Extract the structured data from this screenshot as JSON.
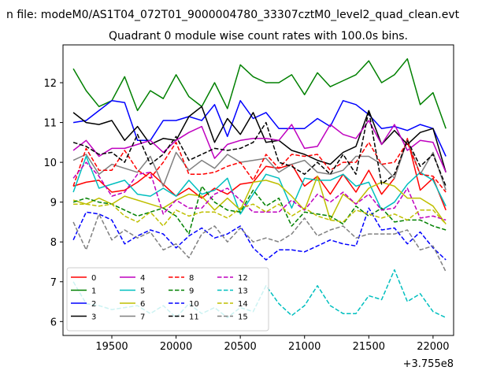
{
  "figure": {
    "suptitle": "n file: modeM0/AS1T04_072T01_9000004780_33307cztM0_level2_quad_clean.evt",
    "offset_text": "+3.755e8"
  },
  "chart_data": {
    "type": "line",
    "title": "Quadrant 0 module wise count rates with 100.0s bins.",
    "xlabel": "",
    "ylabel": "",
    "xlim": [
      19120,
      22160
    ],
    "ylim": [
      5.65,
      12.95
    ],
    "x_ticks": [
      19500,
      20000,
      20500,
      21000,
      21500,
      22000
    ],
    "x_tick_labels": [
      "19500",
      "20000",
      "20500",
      "21000",
      "21500",
      "22000"
    ],
    "y_ticks": [
      6,
      7,
      8,
      9,
      10,
      11,
      12
    ],
    "y_tick_labels": [
      "6",
      "7",
      "8",
      "9",
      "10",
      "11",
      "12"
    ],
    "grid": false,
    "legend_position": "lower-left",
    "legend_columns": 4,
    "x": [
      19200,
      19300,
      19400,
      19500,
      19600,
      19700,
      19800,
      19900,
      20000,
      20100,
      20200,
      20300,
      20400,
      20500,
      20600,
      20700,
      20800,
      20900,
      21000,
      21100,
      21200,
      21300,
      21400,
      21500,
      21600,
      21700,
      21800,
      21900,
      22000,
      22100
    ],
    "series": [
      {
        "name": "0",
        "color": "#ff0000",
        "dash": "solid",
        "values": [
          9.4,
          9.5,
          9.55,
          9.25,
          9.3,
          9.5,
          9.75,
          9.45,
          9.15,
          9.35,
          9.1,
          9.35,
          9.2,
          9.45,
          9.5,
          9.9,
          9.85,
          9.95,
          9.4,
          9.65,
          9.2,
          9.7,
          9.25,
          9.8,
          9.2,
          9.6,
          10.6,
          9.3,
          9.6,
          8.8
        ]
      },
      {
        "name": "1",
        "color": "#008000",
        "dash": "solid",
        "values": [
          12.35,
          11.8,
          11.4,
          11.55,
          12.15,
          11.3,
          11.8,
          11.6,
          12.2,
          11.65,
          11.4,
          12.0,
          11.35,
          12.45,
          12.15,
          12.0,
          12.0,
          12.2,
          11.7,
          12.25,
          11.9,
          12.05,
          12.2,
          12.55,
          12.0,
          12.2,
          12.6,
          11.45,
          11.75,
          10.85
        ]
      },
      {
        "name": "2",
        "color": "#0000ff",
        "dash": "solid",
        "values": [
          11.0,
          11.05,
          11.3,
          11.55,
          11.5,
          10.55,
          10.55,
          11.05,
          11.05,
          11.15,
          11.05,
          11.45,
          10.65,
          11.55,
          11.1,
          11.25,
          10.85,
          10.85,
          10.85,
          11.1,
          10.9,
          11.55,
          11.45,
          11.2,
          10.85,
          10.9,
          10.8,
          10.95,
          10.85,
          10.15
        ]
      },
      {
        "name": "3",
        "color": "#000000",
        "dash": "solid",
        "values": [
          11.25,
          11.0,
          10.95,
          11.05,
          10.55,
          10.9,
          10.45,
          10.6,
          10.55,
          11.15,
          11.4,
          10.5,
          11.1,
          10.7,
          11.25,
          10.5,
          10.55,
          10.3,
          10.2,
          10.05,
          9.95,
          10.25,
          10.4,
          11.3,
          10.45,
          10.8,
          10.45,
          10.75,
          10.85,
          9.75
        ]
      },
      {
        "name": "4",
        "color": "#bf00bf",
        "dash": "solid",
        "values": [
          10.3,
          10.55,
          10.15,
          10.35,
          10.35,
          10.45,
          10.55,
          10.25,
          10.55,
          10.75,
          10.9,
          10.1,
          10.45,
          10.55,
          10.6,
          10.6,
          10.55,
          10.95,
          10.35,
          10.4,
          10.95,
          10.7,
          10.6,
          11.05,
          10.45,
          10.95,
          10.3,
          10.55,
          10.5,
          9.75
        ]
      },
      {
        "name": "5",
        "color": "#00bfbf",
        "dash": "solid",
        "values": [
          9.25,
          10.15,
          9.35,
          9.45,
          9.55,
          9.2,
          9.15,
          9.35,
          9.15,
          9.55,
          9.2,
          9.3,
          9.6,
          8.7,
          9.2,
          9.7,
          9.6,
          8.85,
          9.6,
          9.55,
          9.55,
          9.7,
          9.4,
          9.5,
          8.8,
          9.0,
          9.45,
          9.75,
          9.55,
          8.9
        ]
      },
      {
        "name": "6",
        "color": "#bfbf00",
        "dash": "solid",
        "values": [
          9.05,
          8.95,
          9.1,
          8.95,
          9.15,
          9.05,
          8.95,
          8.85,
          9.05,
          9.2,
          9.15,
          8.8,
          9.1,
          8.8,
          9.5,
          9.55,
          9.45,
          9.15,
          8.8,
          9.65,
          8.55,
          9.2,
          8.95,
          9.35,
          9.5,
          9.4,
          9.1,
          9.1,
          8.9,
          8.45
        ]
      },
      {
        "name": "7",
        "color": "#808080",
        "dash": "solid",
        "values": [
          10.05,
          10.2,
          9.7,
          9.95,
          9.85,
          9.75,
          10.15,
          9.4,
          10.25,
          9.8,
          10.05,
          9.85,
          10.2,
          10.0,
          10.05,
          10.1,
          9.75,
          9.95,
          10.05,
          9.75,
          9.7,
          9.8,
          10.15,
          10.15,
          9.95,
          9.6,
          10.55,
          9.7,
          10.25,
          9.3
        ]
      },
      {
        "name": "8",
        "color": "#ff0000",
        "dash": "dashed",
        "values": [
          9.4,
          10.35,
          9.8,
          9.8,
          10.3,
          9.8,
          9.6,
          10.0,
          10.5,
          9.7,
          9.7,
          9.75,
          9.9,
          10.0,
          9.55,
          10.2,
          9.85,
          10.2,
          10.15,
          10.2,
          9.8,
          10.0,
          10.0,
          10.5,
          9.95,
          10.0,
          10.5,
          9.7,
          9.65,
          9.25
        ]
      },
      {
        "name": "9",
        "color": "#008000",
        "dash": "dashed",
        "values": [
          9.0,
          9.1,
          9.0,
          8.95,
          8.8,
          8.65,
          8.75,
          8.85,
          8.65,
          8.2,
          9.4,
          9.0,
          8.8,
          8.75,
          9.3,
          8.9,
          9.1,
          8.4,
          8.75,
          8.7,
          8.65,
          8.45,
          8.9,
          8.65,
          8.85,
          8.5,
          8.55,
          8.55,
          8.4,
          8.3
        ]
      },
      {
        "name": "10",
        "color": "#0000ff",
        "dash": "dashed",
        "values": [
          8.05,
          8.75,
          8.7,
          8.55,
          7.95,
          8.15,
          8.3,
          8.2,
          7.85,
          8.15,
          8.35,
          8.1,
          8.2,
          8.4,
          7.85,
          7.55,
          7.8,
          7.8,
          7.75,
          7.9,
          8.05,
          7.95,
          7.9,
          8.85,
          8.3,
          8.35,
          7.95,
          8.25,
          7.85,
          7.55
        ]
      },
      {
        "name": "11",
        "color": "#000000",
        "dash": "dashed",
        "values": [
          10.5,
          10.4,
          10.2,
          10.25,
          10.0,
          10.7,
          9.95,
          10.2,
          10.65,
          10.05,
          10.2,
          10.35,
          10.3,
          10.35,
          10.5,
          11.0,
          10.0,
          9.9,
          9.7,
          10.0,
          9.7,
          10.2,
          9.7,
          11.3,
          9.45,
          9.7,
          10.55,
          9.9,
          10.2,
          9.4
        ]
      },
      {
        "name": "12",
        "color": "#bf00bf",
        "dash": "dashed",
        "values": [
          9.6,
          10.0,
          9.65,
          9.15,
          9.25,
          9.7,
          9.75,
          8.7,
          9.05,
          8.85,
          8.85,
          9.2,
          9.35,
          9.05,
          8.75,
          8.75,
          8.75,
          9.05,
          8.8,
          9.2,
          9.0,
          9.25,
          8.95,
          9.2,
          8.8,
          8.85,
          9.35,
          8.6,
          8.65,
          8.55
        ]
      },
      {
        "name": "13",
        "color": "#00bfbf",
        "dash": "dashed",
        "values": [
          7.0,
          6.45,
          6.4,
          6.3,
          6.35,
          6.4,
          6.2,
          6.4,
          6.1,
          6.45,
          6.2,
          6.35,
          6.1,
          6.35,
          6.25,
          6.9,
          6.45,
          6.15,
          6.4,
          6.9,
          6.4,
          6.2,
          6.2,
          6.65,
          6.55,
          7.3,
          6.5,
          6.7,
          6.25,
          6.1
        ]
      },
      {
        "name": "14",
        "color": "#bfbf00",
        "dash": "dashed",
        "values": [
          8.95,
          8.95,
          8.9,
          8.95,
          8.65,
          8.5,
          8.75,
          8.4,
          8.8,
          8.65,
          8.75,
          8.75,
          8.6,
          8.85,
          8.95,
          8.75,
          8.95,
          8.65,
          8.85,
          8.65,
          8.55,
          8.5,
          8.8,
          8.7,
          8.6,
          8.7,
          8.55,
          8.8,
          8.8,
          8.45
        ]
      },
      {
        "name": "15",
        "color": "#808080",
        "dash": "dashed",
        "values": [
          8.5,
          7.8,
          8.7,
          8.05,
          8.3,
          8.1,
          8.25,
          7.8,
          7.95,
          7.6,
          8.2,
          8.4,
          8.0,
          8.35,
          8.0,
          8.1,
          8.0,
          8.2,
          8.6,
          8.15,
          8.3,
          8.4,
          8.1,
          8.2,
          8.2,
          8.2,
          8.3,
          7.8,
          7.9,
          7.25
        ]
      }
    ]
  }
}
